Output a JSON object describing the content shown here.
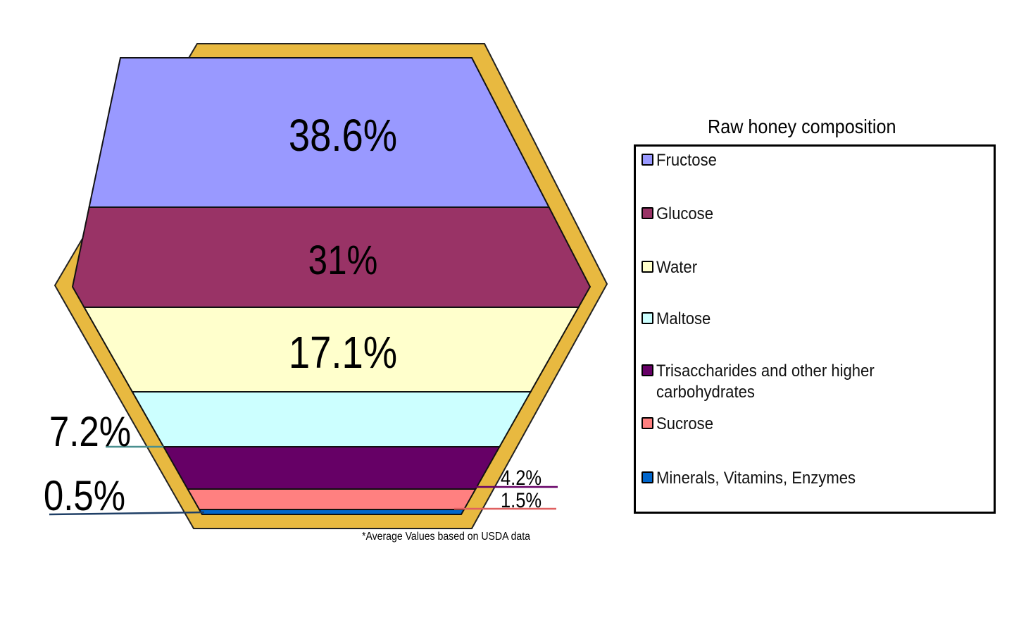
{
  "chart_data": {
    "type": "hexagon-stacked-proportion",
    "title": "Raw honey composition",
    "footnote": "*Average Values based on USDA data",
    "segments": [
      {
        "name": "Fructose",
        "value": 38.6,
        "label": "38.6%",
        "color": "#9999ff"
      },
      {
        "name": "Glucose",
        "value": 31,
        "label": "31%",
        "color": "#993366"
      },
      {
        "name": "Water",
        "value": 17.1,
        "label": "17.1%",
        "color": "#ffffcc"
      },
      {
        "name": "Maltose",
        "value": 7.2,
        "label": "7.2%",
        "color": "#ccffff"
      },
      {
        "name": "Trisaccharides and other higher carbohydrates",
        "value": 4.2,
        "label": "4.2%",
        "color": "#660066"
      },
      {
        "name": "Sucrose",
        "value": 1.5,
        "label": "1.5%",
        "color": "#ff8080"
      },
      {
        "name": "Minerals, Vitamins, Enzymes",
        "value": 0.5,
        "label": "0.5%",
        "color": "#0066cc"
      }
    ],
    "frame_color": "#e8b940"
  }
}
